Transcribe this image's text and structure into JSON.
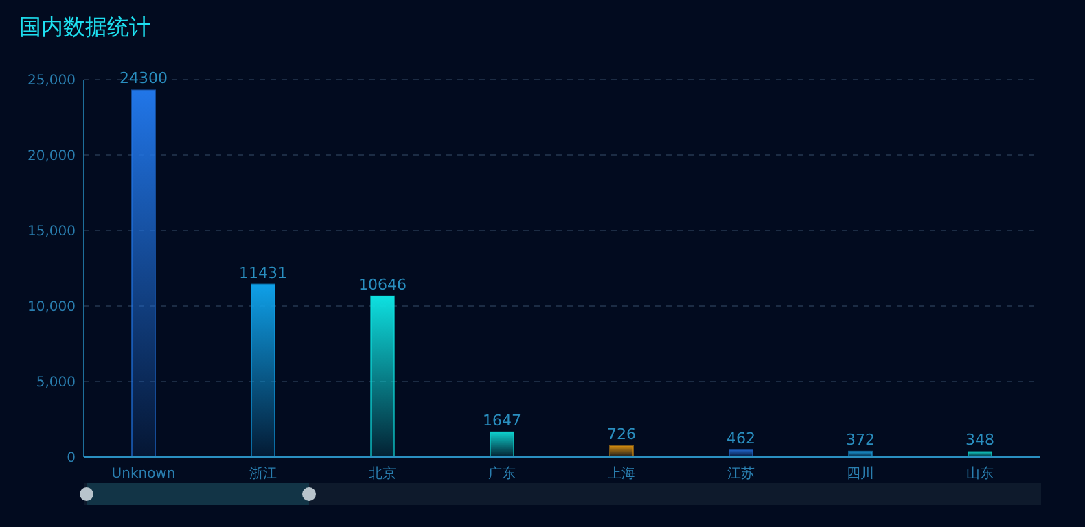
{
  "chart_data": {
    "type": "bar",
    "title": "国内数据统计",
    "categories": [
      "Unknown",
      "浙江",
      "北京",
      "广东",
      "上海",
      "江苏",
      "四川",
      "山东"
    ],
    "values": [
      24300,
      11431,
      10646,
      1647,
      726,
      462,
      372,
      348
    ],
    "colors": [
      "#2176e8",
      "#0fa0e8",
      "#0ee0e0",
      "#0ecfcc",
      "#d08a10",
      "#2060c0",
      "#1a9ad8",
      "#10c8c0"
    ],
    "ylim": [
      0,
      25000
    ],
    "yticks": [
      0,
      {
        "value": 5000,
        "label": "5,000"
      },
      {
        "value": 10000,
        "label": "10,000"
      },
      {
        "value": 15000,
        "label": "15,000"
      },
      {
        "value": 20000,
        "label": "20,000"
      },
      {
        "value": 25000,
        "label": "25,000"
      }
    ],
    "grid": "y",
    "data_labels": true
  }
}
